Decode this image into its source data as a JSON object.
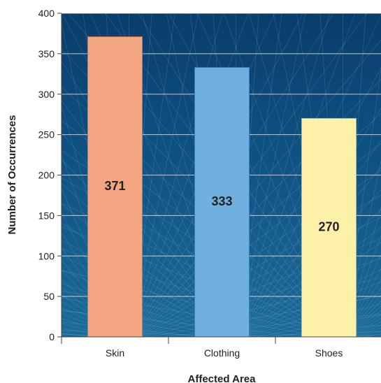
{
  "chart_data": {
    "type": "bar",
    "categories": [
      "Skin",
      "Clothing",
      "Shoes"
    ],
    "values": [
      371,
      333,
      270
    ],
    "xlabel": "Affected Area",
    "ylabel": "Number of Occurrences",
    "ylim": [
      0,
      400
    ],
    "yticks": [
      0,
      50,
      100,
      150,
      200,
      250,
      300,
      350,
      400
    ],
    "grid": true,
    "legend": "none",
    "bar_colors": [
      "#f4a582",
      "#6fb0e0",
      "#fdf0a8"
    ],
    "bar_edge_colors": [
      "#c8714a",
      "#3b7fb8",
      "#c9b66a"
    ],
    "plot_background": "#0b4474",
    "plot_background_light": "#1a6a98"
  }
}
